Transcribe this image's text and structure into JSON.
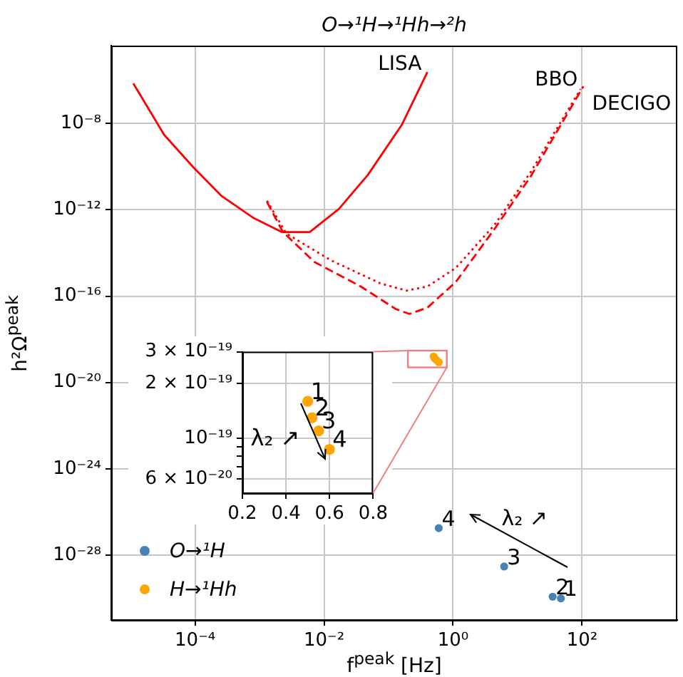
{
  "chart_data": [
    {
      "type": "line",
      "title": "O→¹H→¹Hh→²h",
      "xlabel": "f$^{peak}$ [Hz]",
      "ylabel": "h²Ω$^{peak}$",
      "log": "xy",
      "grid": true,
      "legend": "bottom left",
      "xlim": [
        5e-06,
        3000.0
      ],
      "xticks": [
        {
          "value": 0.0001,
          "label": "10⁻⁴"
        },
        {
          "value": 0.01,
          "label": "10⁻²"
        },
        {
          "value": 1,
          "label": "10⁰"
        },
        {
          "value": 100,
          "label": "10²"
        }
      ],
      "ylim": [
        1e-31,
        4e-05
      ],
      "yticks": [
        {
          "value": 1e-28,
          "label": "10⁻²⁸"
        },
        {
          "value": 1e-24,
          "label": "10⁻²⁴"
        },
        {
          "value": 1e-20,
          "label": "10⁻²⁰"
        },
        {
          "value": 1e-16,
          "label": "10⁻¹⁶"
        },
        {
          "value": 1e-12,
          "label": "10⁻¹²"
        },
        {
          "value": 1e-08,
          "label": "10⁻⁸"
        }
      ],
      "series": [
        {
          "name": "LISA",
          "line_style": "solid",
          "color": "#ff0000",
          "x": [
            1.1e-05,
            3.3e-05,
            9.5e-05,
            0.00026,
            0.00079,
            0.0022,
            0.006,
            0.017,
            0.048,
            0.16,
            0.4
          ],
          "values": [
            7.1e-07,
            3e-09,
            8.9e-11,
            4.2e-12,
            4.3e-13,
            9.3e-14,
            9.3e-14,
            1.1e-12,
            4.2e-11,
            8.5e-09,
            2.4e-06
          ]
        },
        {
          "name": "BBO",
          "line_style": "dashed",
          "color": "#ff0000",
          "x": [
            0.0013,
            0.0023,
            0.0071,
            0.037,
            0.13,
            0.21,
            0.4,
            1.1,
            4.4,
            16,
            105
          ],
          "values": [
            2.3e-12,
            9.3e-14,
            3.8e-15,
            2.8e-16,
            2.5e-17,
            1.5e-17,
            2.9e-17,
            4.5e-16,
            1.3e-13,
            3.5e-11,
            5.2e-07
          ]
        },
        {
          "name": "DECIGO",
          "line_style": "dotted",
          "color": "#ff0000",
          "x": [
            0.0013,
            0.0026,
            0.013,
            0.076,
            0.19,
            0.4,
            1.1,
            4.4,
            16,
            95
          ],
          "values": [
            2.6e-12,
            7.9e-14,
            4.4e-15,
            3.8e-16,
            1.8e-16,
            2.8e-16,
            2e-15,
            2e-13,
            5.6e-11,
            3.9e-07
          ]
        },
        {
          "name": "O→¹H",
          "type": "scatter",
          "marker": "circle",
          "color": "#4682b4",
          "x": [
            47,
            35,
            6.2,
            0.6
          ],
          "values": [
            1e-30,
            1.2e-30,
            3e-29,
            1.8e-27
          ]
        },
        {
          "name": "H→¹Hh",
          "type": "scatter",
          "marker": "circle",
          "color": "#ffa500",
          "x": [
            0.5,
            0.52,
            0.55,
            0.6
          ],
          "values": [
            1.6e-19,
            1.3e-19,
            1.1e-19,
            8.7e-20
          ]
        }
      ],
      "annotations": [
        {
          "text": "1",
          "x": 47,
          "y": 1e-30
        },
        {
          "text": "2",
          "x": 35,
          "y": 1.2e-30
        },
        {
          "text": "3",
          "x": 6.2,
          "y": 3e-29
        },
        {
          "text": "4",
          "x": 0.6,
          "y": 1.8e-27
        },
        "λ₂ ↗"
      ]
    },
    {
      "type": "scatter",
      "log": "y",
      "grid": true,
      "xlim": [
        0.2,
        0.8
      ],
      "xticks": [
        0.2,
        0.4,
        0.6,
        0.8
      ],
      "ylim": [
        5e-20,
        3e-19
      ],
      "yticks": [
        {
          "value": 6e-20,
          "label": "6 × 10⁻²⁰"
        },
        {
          "value": 7e-20,
          "label": null
        },
        {
          "value": 8e-20,
          "label": null
        },
        {
          "value": 9e-20,
          "label": null
        },
        {
          "value": 1e-19,
          "label": "10⁻¹⁹"
        },
        {
          "value": 2e-19,
          "label": "2 × 10⁻¹⁹"
        },
        {
          "value": 3e-19,
          "label": "3 × 10⁻¹⁹"
        }
      ],
      "series": [
        {
          "marker": "circle",
          "color": "#ffa500",
          "x": [
            0.5,
            0.52,
            0.55,
            0.6
          ],
          "values": [
            1.6e-19,
            1.3e-19,
            1.1e-19,
            8.7e-20
          ]
        }
      ],
      "annotations": [
        {
          "text": "1",
          "x": 0.5,
          "y": 1.6e-19
        },
        {
          "text": "2",
          "x": 0.52,
          "y": 1.3e-19
        },
        {
          "text": "3",
          "x": 0.55,
          "y": 1.1e-19
        },
        {
          "text": "4",
          "x": 0.6,
          "y": 8.7e-20
        },
        "λ₂ ↗"
      ]
    }
  ]
}
